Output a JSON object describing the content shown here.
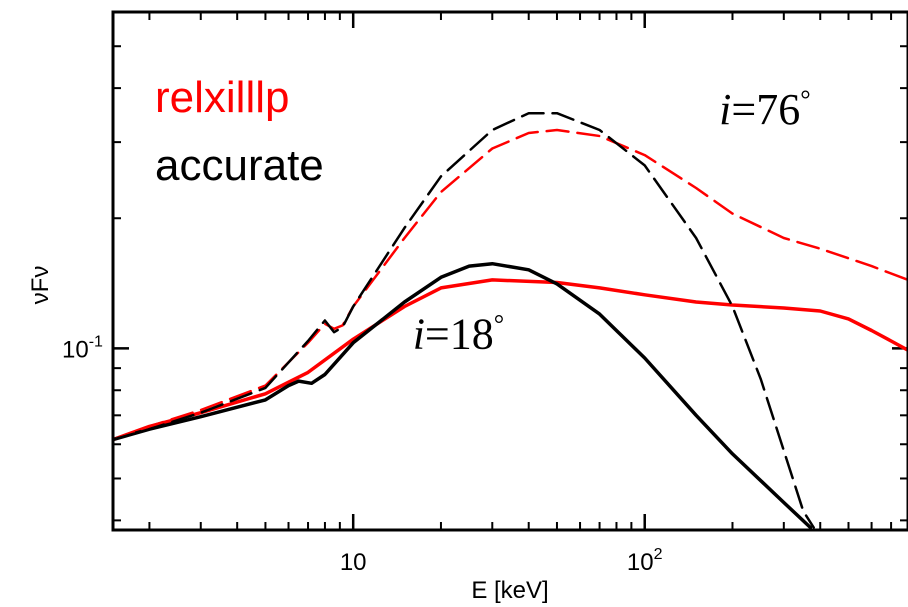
{
  "chart_data": {
    "type": "line",
    "xlabel": "E [keV]",
    "ylabel": "νFν",
    "xscale": "log",
    "yscale": "log",
    "xlim": [
      1.5,
      800
    ],
    "ylim": [
      0.038,
      0.6
    ],
    "grid": false,
    "legend": [
      {
        "label": "relxilllp",
        "color": "#ff0000"
      },
      {
        "label": "accurate",
        "color": "#000000"
      }
    ],
    "x_ticks": [
      {
        "value": 10,
        "base": "10",
        "exp": ""
      },
      {
        "value": 100,
        "base": "10",
        "exp": "2"
      }
    ],
    "y_ticks": [
      {
        "value": 0.1,
        "base": "10",
        "exp": "-1"
      }
    ],
    "annotations": [
      {
        "italic": "i",
        "text": "=76",
        "sup": "°",
        "x": 180,
        "y": 0.33
      },
      {
        "italic": "i",
        "text": "=18",
        "sup": "°",
        "x": 16,
        "y": 0.1
      }
    ],
    "series": [
      {
        "label": "relxilllp",
        "inclination": "18°",
        "color": "#ff0000",
        "dash": "solid",
        "points": [
          [
            1.5,
            0.0615
          ],
          [
            2,
            0.066
          ],
          [
            3,
            0.071
          ],
          [
            5,
            0.0785
          ],
          [
            7,
            0.088
          ],
          [
            10,
            0.105
          ],
          [
            15,
            0.125
          ],
          [
            20,
            0.138
          ],
          [
            30,
            0.144
          ],
          [
            50,
            0.142
          ],
          [
            70,
            0.138
          ],
          [
            100,
            0.133
          ],
          [
            150,
            0.128
          ],
          [
            200,
            0.126
          ],
          [
            300,
            0.124
          ],
          [
            400,
            0.122
          ],
          [
            500,
            0.117
          ],
          [
            600,
            0.11
          ],
          [
            700,
            0.104
          ],
          [
            800,
            0.099
          ]
        ]
      },
      {
        "label": "accurate",
        "inclination": "18°",
        "color": "#000000",
        "dash": "solid",
        "points": [
          [
            1.5,
            0.0615
          ],
          [
            2,
            0.065
          ],
          [
            3,
            0.0695
          ],
          [
            5,
            0.076
          ],
          [
            6,
            0.082
          ],
          [
            6.5,
            0.084
          ],
          [
            7.2,
            0.083
          ],
          [
            8,
            0.087
          ],
          [
            10,
            0.103
          ],
          [
            15,
            0.128
          ],
          [
            20,
            0.146
          ],
          [
            25,
            0.155
          ],
          [
            30,
            0.157
          ],
          [
            40,
            0.152
          ],
          [
            50,
            0.141
          ],
          [
            70,
            0.12
          ],
          [
            100,
            0.095
          ],
          [
            150,
            0.07
          ],
          [
            200,
            0.057
          ],
          [
            300,
            0.044
          ],
          [
            370,
            0.0385
          ]
        ]
      },
      {
        "label": "relxilllp",
        "inclination": "76°",
        "color": "#ff0000",
        "dash": "dashed",
        "points": [
          [
            1.5,
            0.0615
          ],
          [
            2,
            0.066
          ],
          [
            3,
            0.072
          ],
          [
            5,
            0.082
          ],
          [
            7,
            0.103
          ],
          [
            8,
            0.114
          ],
          [
            8.6,
            0.111
          ],
          [
            9.2,
            0.113
          ],
          [
            10,
            0.125
          ],
          [
            15,
            0.18
          ],
          [
            20,
            0.23
          ],
          [
            30,
            0.29
          ],
          [
            40,
            0.315
          ],
          [
            50,
            0.32
          ],
          [
            70,
            0.31
          ],
          [
            100,
            0.28
          ],
          [
            150,
            0.235
          ],
          [
            200,
            0.205
          ],
          [
            300,
            0.18
          ],
          [
            400,
            0.17
          ],
          [
            600,
            0.155
          ],
          [
            800,
            0.144
          ]
        ]
      },
      {
        "label": "accurate",
        "inclination": "76°",
        "color": "#000000",
        "dash": "dashed",
        "points": [
          [
            1.5,
            0.0615
          ],
          [
            2,
            0.065
          ],
          [
            3,
            0.071
          ],
          [
            5,
            0.081
          ],
          [
            7,
            0.104
          ],
          [
            8,
            0.116
          ],
          [
            8.6,
            0.109
          ],
          [
            9.2,
            0.112
          ],
          [
            10,
            0.125
          ],
          [
            15,
            0.19
          ],
          [
            20,
            0.25
          ],
          [
            30,
            0.32
          ],
          [
            40,
            0.35
          ],
          [
            50,
            0.35
          ],
          [
            70,
            0.32
          ],
          [
            100,
            0.265
          ],
          [
            150,
            0.18
          ],
          [
            200,
            0.125
          ],
          [
            250,
            0.085
          ],
          [
            300,
            0.058
          ],
          [
            350,
            0.042
          ],
          [
            380,
            0.0385
          ]
        ]
      }
    ]
  }
}
